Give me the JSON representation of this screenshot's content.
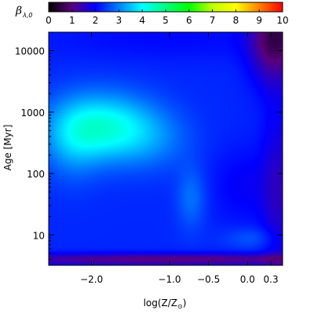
{
  "chart_data": {
    "type": "heatmap",
    "colorbar": {
      "title_main": "β",
      "title_subscript": "λ,0",
      "min": 0,
      "max": 10,
      "ticks": [
        0,
        1,
        2,
        3,
        4,
        5,
        6,
        7,
        8,
        9,
        10
      ],
      "tick_labels": [
        "0",
        "1",
        "2",
        "3",
        "4",
        "5",
        "6",
        "7",
        "8",
        "9",
        "10"
      ],
      "colors": [
        "#000000",
        "#5a007f",
        "#0000ff",
        "#0080ff",
        "#00ffff",
        "#00ff80",
        "#00ff00",
        "#c0ff00",
        "#ffff00",
        "#ff8000",
        "#ff0000"
      ]
    },
    "x_axis": {
      "label_main": "log(Z/Z",
      "label_sub": "⊙",
      "label_close": ")",
      "range": [
        -2.55,
        0.45
      ],
      "ticks": [
        -2.0,
        -1.0,
        -0.5,
        0.0,
        0.3
      ],
      "tick_labels": [
        "−2.0",
        "−1.0",
        "−0.5",
        "0.0",
        "0.3"
      ]
    },
    "y_axis": {
      "label": "Age [Myr]",
      "scale": "log",
      "range": [
        3.2,
        20000
      ],
      "ticks": [
        10,
        100,
        1000,
        10000
      ],
      "tick_labels": [
        "10",
        "100",
        "1000",
        "10000"
      ]
    },
    "field": {
      "background_value": 2.3,
      "blobs": [
        {
          "x": -1.85,
          "logy": 2.75,
          "sx": 0.45,
          "sy": 0.38,
          "amp": 1.9
        },
        {
          "x": -2.25,
          "logy": 2.5,
          "sx": 0.25,
          "sy": 0.45,
          "amp": 0.6
        },
        {
          "x": -1.2,
          "logy": 2.55,
          "sx": 0.35,
          "sy": 0.35,
          "amp": 0.5
        },
        {
          "x": -0.72,
          "logy": 1.6,
          "sx": 0.13,
          "sy": 0.35,
          "amp": 0.6
        },
        {
          "x": 0.05,
          "logy": 0.95,
          "sx": 0.25,
          "sy": 0.12,
          "amp": 0.4
        },
        {
          "x": 0.35,
          "logy": 4.2,
          "sx": 0.22,
          "sy": 0.5,
          "amp": -1.6
        },
        {
          "x": 0.4,
          "logy": 1.7,
          "sx": 0.15,
          "sy": 1.0,
          "amp": -0.7
        },
        {
          "x": -0.05,
          "logy": 1.8,
          "sx": 0.3,
          "sy": 0.45,
          "amp": -0.35
        },
        {
          "x": -1.0,
          "logy": 0.6,
          "sx": 2.0,
          "sy": 0.07,
          "amp": -1.3
        },
        {
          "x": -1.0,
          "logy": 4.2,
          "sx": 1.2,
          "sy": 0.25,
          "amp": -0.25
        }
      ]
    }
  }
}
